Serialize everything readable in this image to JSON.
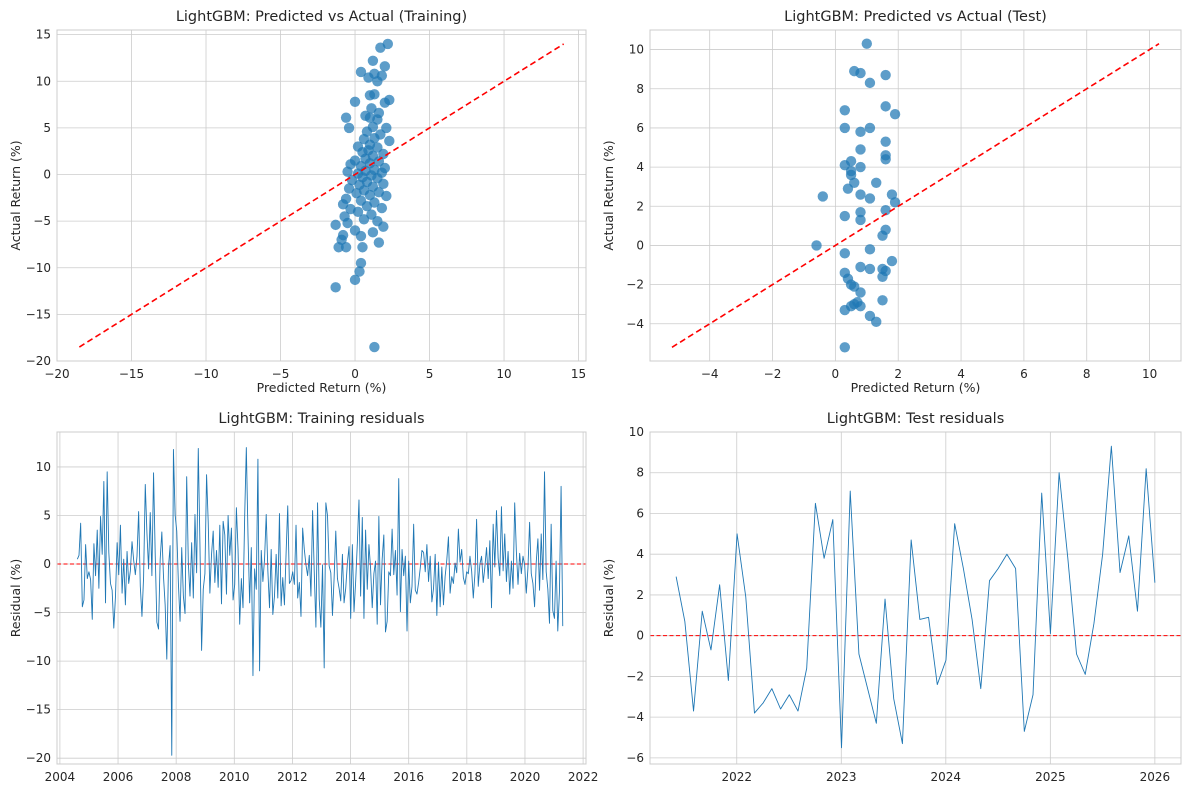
{
  "chart_data": [
    {
      "type": "scatter",
      "title": "LightGBM: Predicted vs Actual (Training)",
      "xlabel": "Predicted Return (%)",
      "ylabel": "Actual Return (%)",
      "xlim": [
        -20,
        15.5
      ],
      "ylim": [
        -20,
        15.5
      ],
      "xticks": [
        -20,
        -15,
        -10,
        -5,
        0,
        5,
        10,
        15
      ],
      "yticks": [
        -20,
        -15,
        -10,
        -5,
        0,
        5,
        10,
        15
      ],
      "grid": true,
      "point_color": "#1f77b4",
      "reference_line": {
        "style": "dashed",
        "color": "#ff0000",
        "from": -18.5,
        "to": 14.0
      },
      "points": [
        [
          2.2,
          14.0
        ],
        [
          1.7,
          13.6
        ],
        [
          1.2,
          12.2
        ],
        [
          1.3,
          10.8
        ],
        [
          0.4,
          11.0
        ],
        [
          1.8,
          10.6
        ],
        [
          0.9,
          10.4
        ],
        [
          2.0,
          11.6
        ],
        [
          1.5,
          10.0
        ],
        [
          1.0,
          8.5
        ],
        [
          1.3,
          8.6
        ],
        [
          2.3,
          8.0
        ],
        [
          2.0,
          7.7
        ],
        [
          0.0,
          7.8
        ],
        [
          1.1,
          7.1
        ],
        [
          0.7,
          6.3
        ],
        [
          1.6,
          6.6
        ],
        [
          1.0,
          6.1
        ],
        [
          -0.6,
          6.1
        ],
        [
          1.5,
          5.9
        ],
        [
          1.2,
          5.1
        ],
        [
          2.1,
          5.0
        ],
        [
          -0.4,
          5.0
        ],
        [
          0.8,
          4.6
        ],
        [
          1.7,
          4.3
        ],
        [
          1.3,
          3.9
        ],
        [
          0.6,
          3.8
        ],
        [
          2.3,
          3.6
        ],
        [
          1.0,
          3.2
        ],
        [
          0.2,
          3.0
        ],
        [
          1.5,
          2.9
        ],
        [
          0.9,
          2.6
        ],
        [
          0.5,
          2.4
        ],
        [
          1.9,
          2.2
        ],
        [
          1.2,
          2.0
        ],
        [
          0.7,
          1.7
        ],
        [
          0.0,
          1.5
        ],
        [
          1.6,
          1.4
        ],
        [
          1.0,
          1.2
        ],
        [
          -0.3,
          1.1
        ],
        [
          0.4,
          0.9
        ],
        [
          2.0,
          0.7
        ],
        [
          1.3,
          0.5
        ],
        [
          0.7,
          0.4
        ],
        [
          -0.5,
          0.3
        ],
        [
          1.8,
          0.2
        ],
        [
          0.2,
          0.1
        ],
        [
          1.1,
          -0.1
        ],
        [
          0.5,
          -0.3
        ],
        [
          1.5,
          -0.4
        ],
        [
          -0.2,
          -0.6
        ],
        [
          0.8,
          -0.8
        ],
        [
          1.9,
          -1.0
        ],
        [
          0.3,
          -1.1
        ],
        [
          1.2,
          -1.3
        ],
        [
          -0.4,
          -1.5
        ],
        [
          0.6,
          -1.7
        ],
        [
          1.6,
          -1.9
        ],
        [
          0.1,
          -2.0
        ],
        [
          1.0,
          -2.2
        ],
        [
          2.1,
          -2.3
        ],
        [
          -0.6,
          -2.6
        ],
        [
          0.4,
          -2.8
        ],
        [
          1.3,
          -3.0
        ],
        [
          -0.8,
          -3.2
        ],
        [
          0.8,
          -3.4
        ],
        [
          1.8,
          -3.6
        ],
        [
          -0.3,
          -3.7
        ],
        [
          0.2,
          -4.0
        ],
        [
          1.1,
          -4.3
        ],
        [
          -0.7,
          -4.5
        ],
        [
          0.6,
          -4.8
        ],
        [
          1.5,
          -5.0
        ],
        [
          -0.5,
          -5.2
        ],
        [
          -1.3,
          -5.4
        ],
        [
          1.9,
          -5.6
        ],
        [
          0.0,
          -6.0
        ],
        [
          1.2,
          -6.2
        ],
        [
          -0.8,
          -6.5
        ],
        [
          0.4,
          -6.6
        ],
        [
          1.6,
          -7.3
        ],
        [
          -0.9,
          -7.0
        ],
        [
          -1.1,
          -7.8
        ],
        [
          0.5,
          -7.8
        ],
        [
          -0.6,
          -7.8
        ],
        [
          0.4,
          -9.5
        ],
        [
          0.3,
          -10.4
        ],
        [
          0.0,
          -11.3
        ],
        [
          -1.3,
          -12.1
        ],
        [
          1.3,
          -18.5
        ]
      ]
    },
    {
      "type": "scatter",
      "title": "LightGBM: Predicted vs Actual (Test)",
      "xlabel": "Predicted Return (%)",
      "ylabel": "Actual Return (%)",
      "xlim": [
        -5.9,
        11.0
      ],
      "ylim": [
        -5.9,
        11.0
      ],
      "xticks": [
        -4,
        -2,
        0,
        2,
        4,
        6,
        8,
        10
      ],
      "yticks": [
        -4,
        -2,
        0,
        2,
        4,
        6,
        8,
        10
      ],
      "grid": true,
      "point_color": "#1f77b4",
      "reference_line": {
        "style": "dashed",
        "color": "#ff0000",
        "from": -5.2,
        "to": 10.3
      },
      "points": [
        [
          1.0,
          10.3
        ],
        [
          0.6,
          8.9
        ],
        [
          0.8,
          8.8
        ],
        [
          1.6,
          8.7
        ],
        [
          1.1,
          8.3
        ],
        [
          1.6,
          7.1
        ],
        [
          0.3,
          6.9
        ],
        [
          1.9,
          6.7
        ],
        [
          0.3,
          6.0
        ],
        [
          0.8,
          5.8
        ],
        [
          1.1,
          6.0
        ],
        [
          1.6,
          5.3
        ],
        [
          0.8,
          4.9
        ],
        [
          1.6,
          4.6
        ],
        [
          0.5,
          4.3
        ],
        [
          1.6,
          4.4
        ],
        [
          0.3,
          4.1
        ],
        [
          0.8,
          4.0
        ],
        [
          0.5,
          3.8
        ],
        [
          0.5,
          3.6
        ],
        [
          1.3,
          3.2
        ],
        [
          0.6,
          3.2
        ],
        [
          0.4,
          2.9
        ],
        [
          0.8,
          2.6
        ],
        [
          1.8,
          2.6
        ],
        [
          -0.4,
          2.5
        ],
        [
          1.1,
          2.4
        ],
        [
          1.9,
          2.2
        ],
        [
          1.6,
          1.8
        ],
        [
          0.8,
          1.7
        ],
        [
          0.3,
          1.5
        ],
        [
          0.8,
          1.3
        ],
        [
          1.6,
          0.8
        ],
        [
          1.5,
          0.5
        ],
        [
          -0.6,
          0.0
        ],
        [
          1.1,
          -0.2
        ],
        [
          0.3,
          -0.4
        ],
        [
          1.8,
          -0.8
        ],
        [
          0.8,
          -1.1
        ],
        [
          1.1,
          -1.2
        ],
        [
          1.5,
          -1.2
        ],
        [
          0.3,
          -1.4
        ],
        [
          1.6,
          -1.3
        ],
        [
          1.5,
          -1.6
        ],
        [
          0.4,
          -1.7
        ],
        [
          0.6,
          -2.1
        ],
        [
          0.5,
          -2.0
        ],
        [
          0.8,
          -2.4
        ],
        [
          1.5,
          -2.8
        ],
        [
          0.7,
          -2.9
        ],
        [
          0.6,
          -3.0
        ],
        [
          0.8,
          -3.1
        ],
        [
          0.5,
          -3.1
        ],
        [
          0.3,
          -3.3
        ],
        [
          1.1,
          -3.6
        ],
        [
          1.3,
          -3.9
        ],
        [
          0.3,
          -5.2
        ]
      ]
    },
    {
      "type": "line",
      "title": "LightGBM: Training residuals",
      "xlabel": "",
      "ylabel": "Residual (%)",
      "xlim": [
        2003.9,
        2022.1
      ],
      "ylim": [
        -20.6,
        13.6
      ],
      "xticks": [
        2004,
        2006,
        2008,
        2010,
        2012,
        2014,
        2016,
        2018,
        2020,
        2022
      ],
      "yticks": [
        -20,
        -15,
        -10,
        -5,
        0,
        5,
        10
      ],
      "grid": true,
      "line_color": "#1f77b4",
      "zero_line": {
        "style": "dashed",
        "color": "#ff0000",
        "y": 0
      },
      "x_start": 2004.6,
      "x_end": 2021.3,
      "y": [
        0.5,
        0.9,
        4.2,
        -4.4,
        -3.7,
        2.0,
        -1.5,
        -0.8,
        -1.6,
        -5.7,
        2.1,
        -1.2,
        3.5,
        -2.5,
        4.9,
        1.0,
        8.5,
        -4.0,
        9.5,
        1.2,
        -2.0,
        -2.7,
        -6.6,
        -3.4,
        2.2,
        -1.1,
        4.0,
        -3.0,
        0.5,
        -4.2,
        1.3,
        -2.0,
        -0.7,
        2.3,
        0.4,
        -1.1,
        0.8,
        5.4,
        -2.3,
        -5.4,
        -1.3,
        8.2,
        3.2,
        -0.5,
        5.3,
        -1.2,
        9.4,
        1.0,
        -6.0,
        -6.7,
        0.5,
        3.3,
        -1.3,
        -4.2,
        -9.8,
        -0.3,
        1.9,
        -19.7,
        11.8,
        5.1,
        3.4,
        -2.0,
        -5.9,
        1.7,
        -3.3,
        -5.1,
        9.0,
        0.1,
        -3.3,
        2.2,
        -3.5,
        5.1,
        -0.9,
        11.9,
        2.0,
        -8.9,
        -2.6,
        -1.0,
        9.2,
        4.3,
        -3.0,
        1.0,
        3.4,
        -1.9,
        1.4,
        -2.4,
        4.0,
        -4.1,
        4.4,
        3.0,
        -3.1,
        5.0,
        0.9,
        3.7,
        -3.7,
        -2.1,
        5.8,
        1.5,
        -6.2,
        -1.5,
        -4.5,
        4.9,
        12.0,
        3.0,
        -4.0,
        1.7,
        -11.5,
        -0.5,
        -2.6,
        10.8,
        -11.0,
        1.4,
        -1.8,
        0.5,
        5.1,
        -0.7,
        -4.5,
        1.5,
        -5.2,
        -3.3,
        1.0,
        -3.5,
        5.2,
        -4.3,
        -1.4,
        -4.2,
        1.1,
        6.0,
        -2.0,
        -1.7,
        -0.8,
        -2.1,
        4.0,
        -3.5,
        -1.9,
        -5.4,
        3.7,
        1.5,
        -0.1,
        -1.2,
        0.9,
        -3.3,
        5.5,
        -0.8,
        -6.5,
        6.3,
        -3.6,
        -6.5,
        -0.1,
        -10.7,
        6.3,
        5.0,
        -0.2,
        -0.9,
        -5.3,
        -1.4,
        3.4,
        -1.5,
        -2.5,
        -3.8,
        1.0,
        -4.0,
        -2.5,
        0.1,
        1.8,
        -5.6,
        2.0,
        -4.9,
        -1.8,
        2.1,
        6.6,
        -3.3,
        4.8,
        -5.6,
        3.5,
        -2.6,
        2.0,
        -0.4,
        -4.5,
        -1.0,
        0.3,
        -6.2,
        4.9,
        -4.2,
        0.5,
        3.0,
        -7.0,
        -5.9,
        -0.8,
        -1.2,
        3.6,
        -1.1,
        1.4,
        -3.2,
        8.8,
        -4.9,
        1.5,
        -1.2,
        0.8,
        -6.9,
        0.3,
        -4.0,
        -2.3,
        4.1,
        -2.7,
        -3.1,
        -1.9,
        -0.4,
        1.4,
        1.2,
        -0.8,
        2.0,
        -1.8,
        0.8,
        -3.9,
        -2.5,
        1.0,
        -5.3,
        0.2,
        -4.4,
        -0.3,
        -4.2,
        -1.3,
        0.4,
        2.8,
        -3.0,
        -1.3,
        -2.0,
        0.1,
        -0.9,
        3.6,
        0.2,
        1.5,
        -1.4,
        -2.1,
        -0.8,
        -1.0,
        0.8,
        -0.7,
        -3.5,
        -1.0,
        4.6,
        -2.3,
        0.0,
        0.8,
        -1.9,
        -0.3,
        1.7,
        -1.5,
        2.4,
        -4.5,
        4.1,
        -0.3,
        5.5,
        0.6,
        -1.2,
        5.9,
        -0.7,
        3.1,
        -1.8,
        1.3,
        -3.1,
        0.3,
        -2.5,
        6.3,
        1.3,
        -2.1,
        1.1,
        -1.0,
        0.8,
        -0.1,
        -3.0,
        -0.4,
        4.3,
        -1.0,
        -2.0,
        -4.4,
        0.2,
        2.6,
        -2.7,
        3.1,
        -1.6,
        9.5,
        -0.8,
        -2.6,
        -6.1,
        4.1,
        -4.8,
        -5.6,
        0.3,
        -6.9,
        -2.9,
        8.0,
        -6.4
      ]
    },
    {
      "type": "line",
      "title": "LightGBM: Test residuals",
      "xlabel": "",
      "ylabel": "Residual (%)",
      "xlim": [
        2021.17,
        2026.25
      ],
      "ylim": [
        -6.3,
        10.0
      ],
      "xticks": [
        2022,
        2023,
        2024,
        2025,
        2026
      ],
      "yticks": [
        -6,
        -4,
        -2,
        0,
        2,
        4,
        6,
        8,
        10
      ],
      "grid": true,
      "line_color": "#1f77b4",
      "zero_line": {
        "style": "dashed",
        "color": "#ff0000",
        "y": 0
      },
      "x_start": 2021.42,
      "x_end": 2026.0,
      "y": [
        2.9,
        0.7,
        -3.7,
        1.2,
        -0.7,
        2.5,
        -2.2,
        5.0,
        1.9,
        -3.8,
        -3.3,
        -2.6,
        -3.6,
        -2.9,
        -3.7,
        -1.6,
        6.5,
        3.8,
        5.7,
        -5.5,
        7.1,
        -0.9,
        -2.6,
        -4.3,
        1.8,
        -3.1,
        -5.3,
        4.7,
        0.8,
        0.9,
        -2.4,
        -1.2,
        5.5,
        3.3,
        0.8,
        -2.6,
        2.7,
        3.3,
        4.0,
        3.3,
        -4.7,
        -2.9,
        7.0,
        0.1,
        8.0,
        3.8,
        -0.9,
        -1.9,
        0.6,
        4.0,
        9.3,
        3.1,
        4.9,
        1.2,
        8.2,
        2.6
      ]
    }
  ]
}
